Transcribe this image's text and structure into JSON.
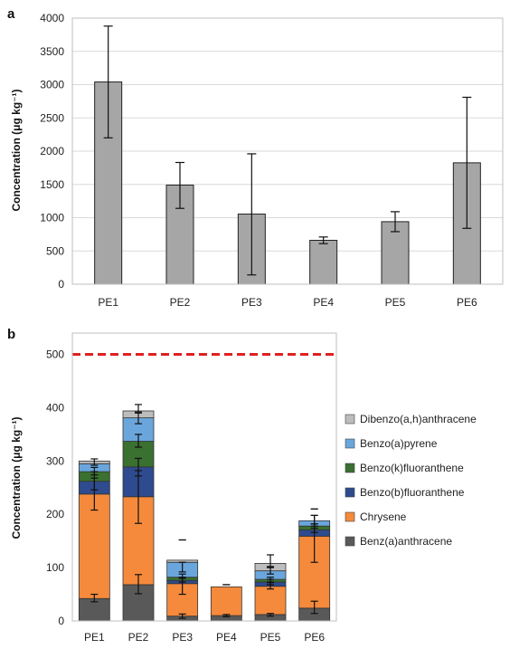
{
  "chart_data": [
    {
      "type": "bar",
      "panel_label": "a",
      "categories": [
        "PE1",
        "PE2",
        "PE3",
        "PE4",
        "PE5",
        "PE6"
      ],
      "values": [
        3040,
        1490,
        1055,
        660,
        940,
        1825
      ],
      "error_low": [
        2200,
        1140,
        140,
        610,
        790,
        840
      ],
      "error_high": [
        3880,
        1830,
        1960,
        710,
        1090,
        2810
      ],
      "ylabel": "Concentration (μg kg⁻¹)",
      "ylim": [
        0,
        4000
      ],
      "yticks": [
        0,
        500,
        1000,
        1500,
        2000,
        2500,
        3000,
        3500,
        4000
      ],
      "grid": true,
      "bar_color": "#a6a6a6"
    },
    {
      "type": "bar",
      "stacked": true,
      "panel_label": "b",
      "categories": [
        "PE1",
        "PE2",
        "PE3",
        "PE4",
        "PE5",
        "PE6"
      ],
      "ylabel": "Concentration (μg kg⁻¹)",
      "ylim": [
        0,
        540
      ],
      "yticks": [
        0,
        100,
        200,
        300,
        400,
        500
      ],
      "grid": false,
      "legend_position": "right",
      "reference_line": {
        "value": 500,
        "color": "#e02020",
        "style": "dashed"
      },
      "series": [
        {
          "name": "Benz(a)anthracene",
          "color": "#595959",
          "values": [
            42,
            68,
            9,
            10,
            12,
            24
          ],
          "error_low": [
            36,
            51,
            5,
            8,
            9,
            14
          ],
          "error_high": [
            50,
            87,
            13,
            12,
            14,
            37
          ]
        },
        {
          "name": "Chrysene",
          "color": "#f58a3c",
          "values": [
            196,
            165,
            61,
            54,
            53,
            135
          ],
          "error_low": [
            208,
            183,
            50,
            0,
            60,
            110
          ],
          "error_high": [
            268,
            282,
            80,
            0,
            72,
            198
          ]
        },
        {
          "name": "Benzo(b)fluoranthene",
          "color": "#2f4b8f",
          "values": [
            24,
            56,
            6,
            0,
            8,
            12
          ],
          "error_low": [
            246,
            272,
            73,
            0,
            68,
            166
          ],
          "error_high": [
            280,
            305,
            82,
            0,
            78,
            178
          ]
        },
        {
          "name": "Benzo(k)fluoranthene",
          "color": "#3a7030",
          "values": [
            18,
            48,
            6,
            0,
            5,
            7
          ],
          "error_low": [
            274,
            326,
            80,
            0,
            73,
            174
          ],
          "error_high": [
            288,
            350,
            88,
            0,
            82,
            182
          ]
        },
        {
          "name": "Benzo(a)pyrene",
          "color": "#6aa6dc",
          "values": [
            15,
            44,
            28,
            0,
            16,
            10
          ],
          "error_low": [
            292,
            370,
            92,
            0,
            88,
            182
          ],
          "error_high": [
            304,
            392,
            110,
            0,
            102,
            198
          ]
        },
        {
          "name": "Dibenzo(a,h)anthracene",
          "color": "#bdbdbd",
          "values": [
            5,
            13,
            4,
            0,
            14,
            0
          ],
          "error_low": [
            0,
            390,
            0,
            0,
            100,
            0
          ],
          "error_high": [
            0,
            406,
            152,
            68,
            124,
            210
          ]
        }
      ]
    }
  ]
}
